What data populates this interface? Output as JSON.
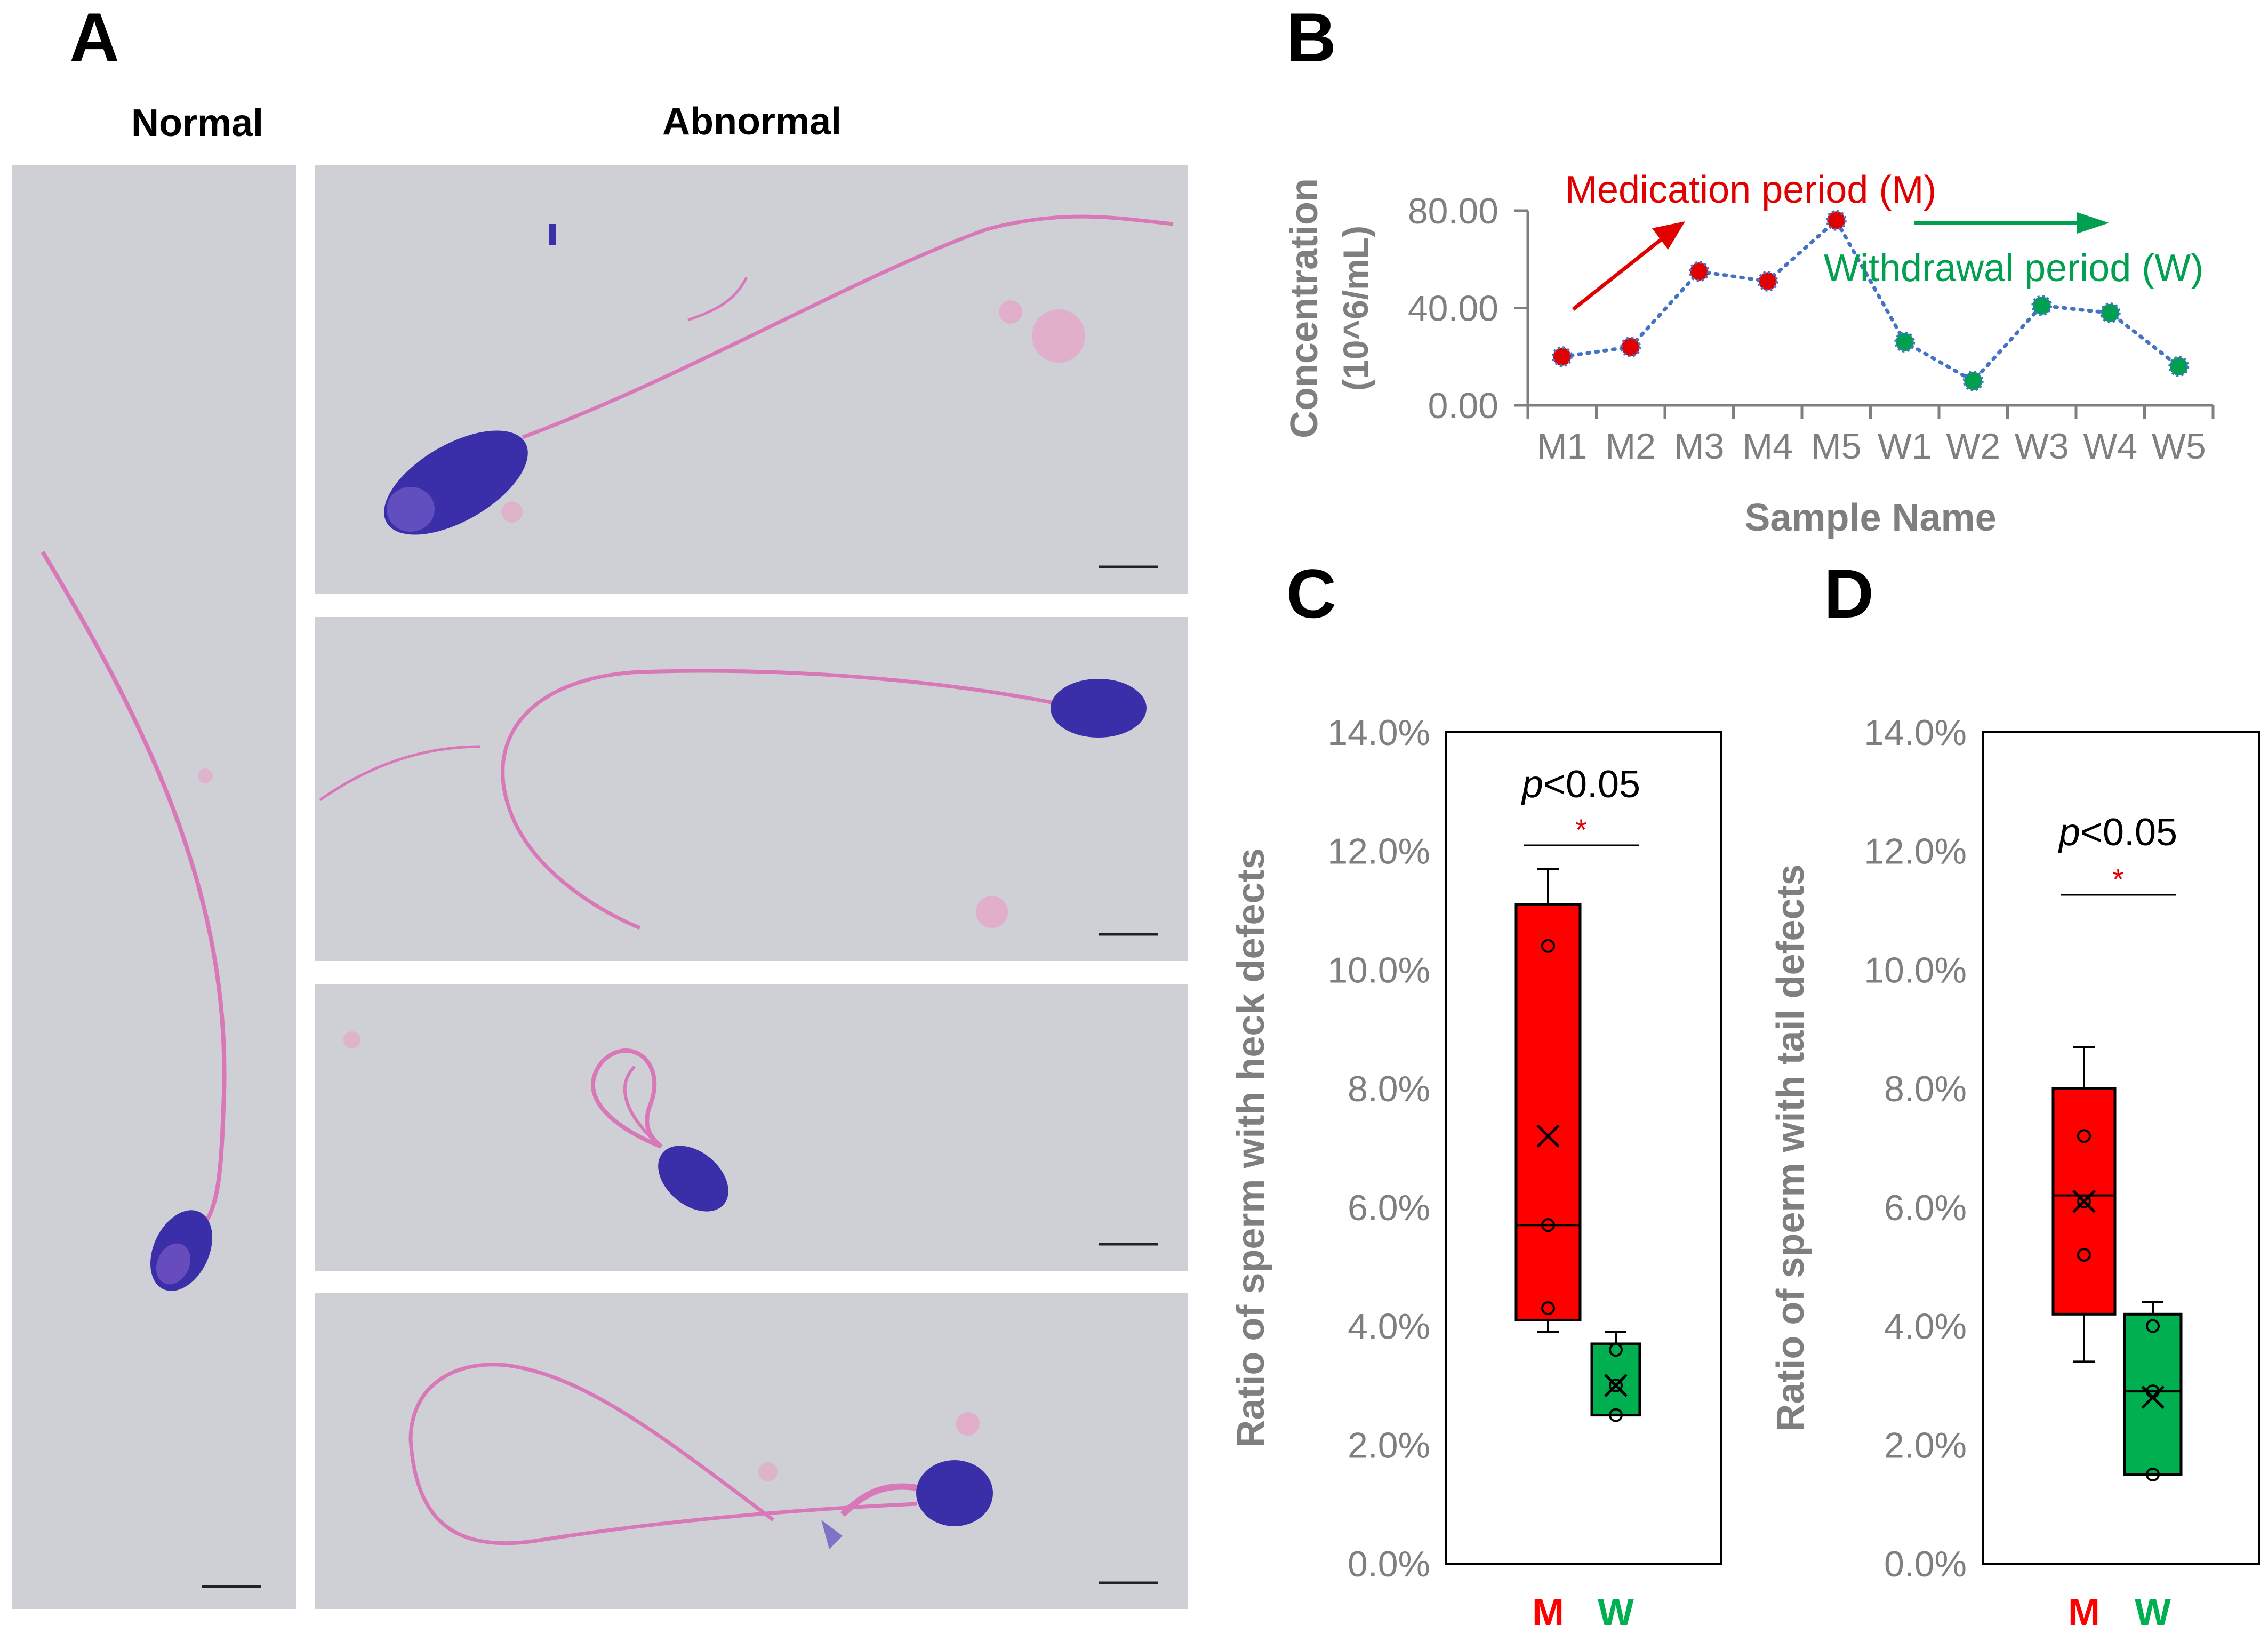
{
  "panels": {
    "A": {
      "label": "A",
      "normal_label": "Normal",
      "abnormal_label": "Abnormal"
    },
    "B": {
      "label": "B"
    },
    "C": {
      "label": "C"
    },
    "D": {
      "label": "D"
    }
  },
  "colors": {
    "medication": "#e00000",
    "withdrawal": "#00a050",
    "line": "#4472c4",
    "axis": "#7f7f7f",
    "box_m": "#ff0000",
    "box_w": "#00b050",
    "micro_bg": "#cfd0d6",
    "stain_head": "#3a2fa8",
    "stain_tail": "#d878b8"
  },
  "chart_data": [
    {
      "id": "B",
      "type": "line",
      "categories": [
        "M1",
        "M2",
        "M3",
        "M4",
        "M5",
        "W1",
        "W2",
        "W3",
        "W4",
        "W5"
      ],
      "values": [
        20,
        24,
        55,
        51,
        76,
        26,
        10,
        41,
        38,
        16
      ],
      "ylim": [
        0,
        80
      ],
      "yticks": [
        "0.00",
        "40.00",
        "80.00"
      ],
      "ytick_values": [
        0,
        40,
        80
      ],
      "xlabel": "Sample Name",
      "ylabel_line1": "Concentration",
      "ylabel_line2": "(10^6/mL)",
      "annotations": {
        "medication": "Medication period (M)",
        "withdrawal": "Withdrawal period (W)"
      }
    },
    {
      "id": "C",
      "type": "box",
      "categories": [
        "M",
        "W"
      ],
      "ylim": [
        0,
        14
      ],
      "yticks": [
        "0.0%",
        "2.0%",
        "4.0%",
        "6.0%",
        "8.0%",
        "10.0%",
        "12.0%",
        "14.0%"
      ],
      "ytick_values": [
        0,
        2,
        4,
        6,
        8,
        10,
        12,
        14
      ],
      "ylabel": "Ratio of  sperm with heck defects",
      "boxes": [
        {
          "name": "M",
          "min": 3.9,
          "q1": 4.1,
          "median": 5.7,
          "q3": 11.1,
          "max": 11.7,
          "mean": 7.2,
          "points": [
            4.3,
            5.7,
            10.4
          ]
        },
        {
          "name": "W",
          "min": 2.5,
          "q1": 2.5,
          "median": 2.5,
          "q3": 3.7,
          "max": 3.9,
          "mean": 3.0,
          "points": [
            2.5,
            3.0,
            3.6
          ]
        }
      ],
      "significance": {
        "p": "p",
        "rest": "<0.05",
        "star": "*"
      }
    },
    {
      "id": "D",
      "type": "box",
      "categories": [
        "M",
        "W"
      ],
      "ylim": [
        0,
        14
      ],
      "yticks": [
        "0.0%",
        "2.0%",
        "4.0%",
        "6.0%",
        "8.0%",
        "10.0%",
        "12.0%",
        "14.0%"
      ],
      "ytick_values": [
        0,
        2,
        4,
        6,
        8,
        10,
        12,
        14
      ],
      "ylabel": "Ratio of  sperm with tail defects",
      "boxes": [
        {
          "name": "M",
          "min": 3.4,
          "q1": 4.2,
          "median": 6.2,
          "q3": 8.0,
          "max": 8.7,
          "mean": 6.1,
          "points": [
            5.2,
            6.1,
            7.2
          ]
        },
        {
          "name": "W",
          "min": 1.5,
          "q1": 1.5,
          "median": 2.9,
          "q3": 4.2,
          "max": 4.4,
          "mean": 2.8,
          "points": [
            1.5,
            2.9,
            4.0
          ]
        }
      ],
      "significance": {
        "p": "p",
        "rest": "<0.05",
        "star": "*"
      }
    }
  ]
}
